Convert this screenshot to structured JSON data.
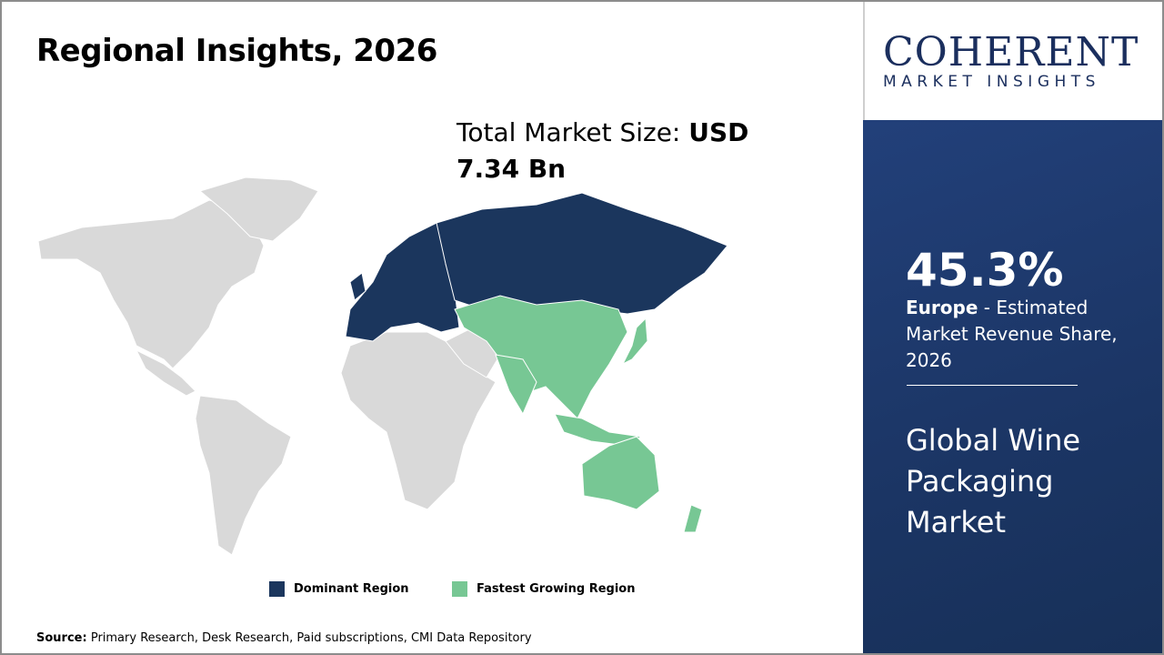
{
  "title": "Regional Insights, 2026",
  "total_market": {
    "label": "Total Market Size:",
    "value": "USD 7.34 Bn"
  },
  "logo": {
    "main": "COHERENT",
    "sub": "MARKET INSIGHTS"
  },
  "legend": [
    {
      "label": "Dominant Region",
      "color": "#1b365d"
    },
    {
      "label": "Fastest Growing Region",
      "color": "#77c794"
    }
  ],
  "map": {
    "dominant_region": "Europe",
    "fastest_growing_region": "Asia Pacific",
    "other_color": "#d9d9d9"
  },
  "source": {
    "label": "Source:",
    "text": "Primary Research, Desk Research, Paid subscriptions, CMI Data Repository"
  },
  "panel": {
    "share": "45.3%",
    "region": "Europe",
    "share_desc": "- Estimated Market Revenue Share, 2026",
    "market_name": "Global Wine Packaging Market"
  }
}
